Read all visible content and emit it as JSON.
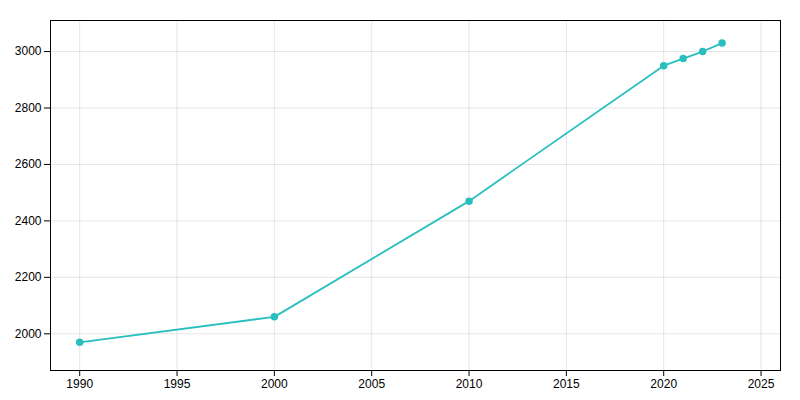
{
  "chart_data": {
    "type": "line",
    "x": [
      1990,
      2000,
      2010,
      2020,
      2021,
      2022,
      2023
    ],
    "values": [
      1970,
      2060,
      2470,
      2950,
      2975,
      3000,
      3030
    ],
    "color": "#2abfbf",
    "marker": "circle",
    "xlim": [
      1988.5,
      2026
    ],
    "ylim": [
      1870,
      3110
    ],
    "xticks": [
      1990,
      1995,
      2000,
      2005,
      2010,
      2015,
      2020,
      2025
    ],
    "yticks": [
      2000,
      2200,
      2400,
      2600,
      2800,
      3000
    ],
    "grid": true
  }
}
